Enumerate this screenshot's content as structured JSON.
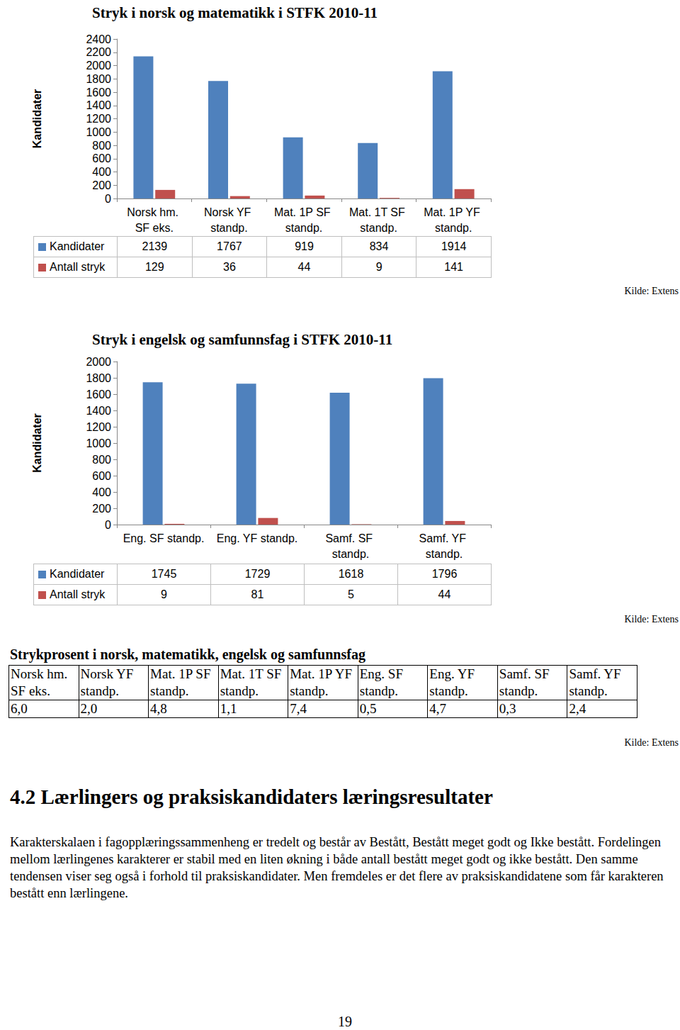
{
  "chart_data": [
    {
      "type": "bar",
      "title": "Stryk i norsk og matematikk i STFK 2010-11",
      "y_label": "Kandidater",
      "categories": [
        "Norsk hm. SF eks.",
        "Norsk YF standp.",
        "Mat. 1P SF standp.",
        "Mat. 1T SF standp.",
        "Mat. 1P YF standp."
      ],
      "series": [
        {
          "name": "Kandidater",
          "color": "#4f81bd",
          "values": [
            2139,
            1767,
            919,
            834,
            1914
          ]
        },
        {
          "name": "Antall stryk",
          "color": "#c0504d",
          "values": [
            129,
            36,
            44,
            9,
            141
          ]
        }
      ],
      "ylim": [
        0,
        2400
      ],
      "yticks": [
        0,
        200,
        400,
        600,
        800,
        1000,
        1200,
        1400,
        1600,
        1800,
        2000,
        2200,
        2400
      ],
      "grid": false,
      "source": "Kilde: Extens"
    },
    {
      "type": "bar",
      "title": "Stryk i engelsk og samfunnsfag i STFK 2010-11",
      "y_label": "Kandidater",
      "categories": [
        "Eng. SF standp.",
        "Eng. YF standp.",
        "Samf. SF standp.",
        "Samf. YF standp."
      ],
      "series": [
        {
          "name": "Kandidater",
          "color": "#4f81bd",
          "values": [
            1745,
            1729,
            1618,
            1796
          ]
        },
        {
          "name": "Antall stryk",
          "color": "#c0504d",
          "values": [
            9,
            81,
            5,
            44
          ]
        }
      ],
      "ylim": [
        0,
        2000
      ],
      "yticks": [
        0,
        200,
        400,
        600,
        800,
        1000,
        1200,
        1400,
        1600,
        1800,
        2000
      ],
      "grid": false,
      "source": "Kilde: Extens"
    }
  ],
  "table": {
    "title": "Strykprosent i norsk, matematikk, engelsk og samfunnsfag",
    "header": [
      "Norsk hm. SF eks.",
      "Norsk YF standp.",
      "Mat. 1P SF standp.",
      "Mat. 1T SF standp.",
      "Mat. 1P YF standp.",
      "Eng. SF standp.",
      "Eng. YF standp.",
      "Samf. SF standp.",
      "Samf. YF standp."
    ],
    "rows": [
      [
        "6,0",
        "2,0",
        "4,8",
        "1,1",
        "7,4",
        "0,5",
        "4,7",
        "0,3",
        "2,4"
      ]
    ],
    "source": "Kilde: Extens"
  },
  "section": {
    "heading": "4.2 Lærlingers og praksiskandidaters læringsresultater",
    "paragraph": "Karakterskalaen i fagopplæringssammenheng er tredelt og består av Bestått, Bestått meget godt og Ikke bestått. Fordelingen mellom lærlingenes karakterer er stabil med en liten økning i både antall bestått meget godt og ikke bestått. Den samme tendensen viser seg også i forhold til praksiskandidater. Men fremdeles er det flere av praksiskandidatene som får karakteren bestått enn lærlingene."
  },
  "page_number": "19"
}
